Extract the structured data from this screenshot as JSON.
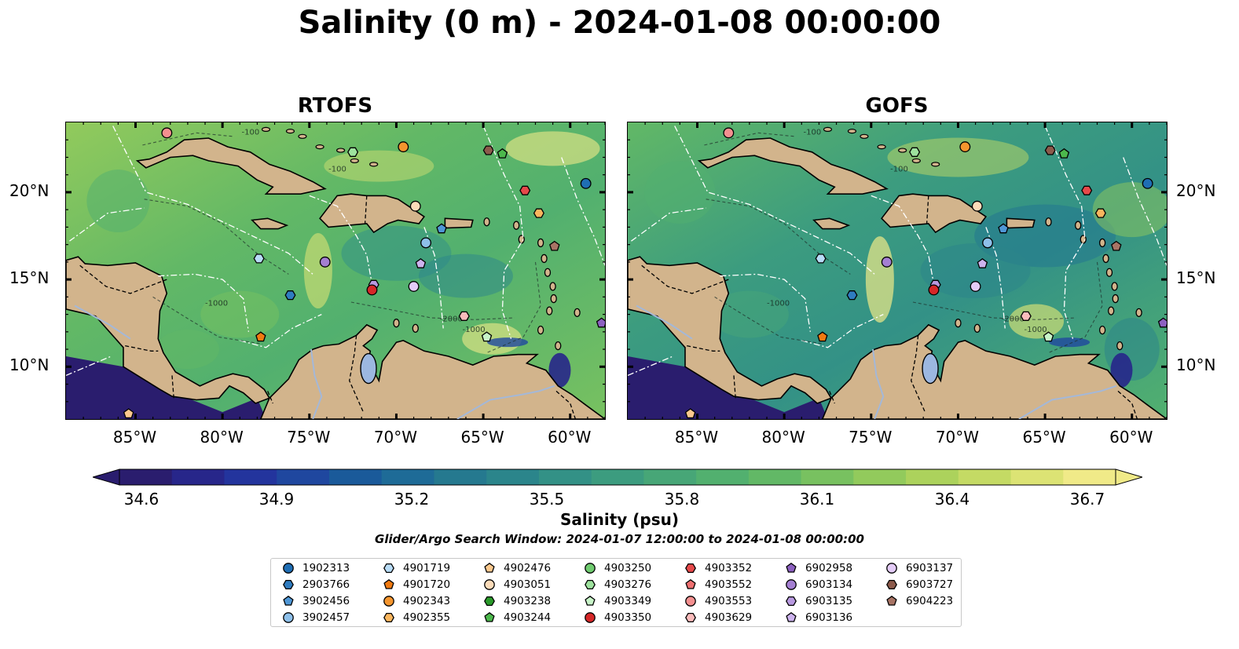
{
  "title": "Salinity (0 m) - 2024-01-08 00:00:00",
  "panels": [
    {
      "id": "rtofs",
      "title": "RTOFS"
    },
    {
      "id": "gofs",
      "title": "GOFS"
    }
  ],
  "map": {
    "lon_range": [
      -89,
      -58
    ],
    "lat_range": [
      7,
      24
    ],
    "lon_ticks": [
      "85°W",
      "80°W",
      "75°W",
      "70°W",
      "65°W",
      "60°W"
    ],
    "lat_ticks": [
      "20°N",
      "15°N",
      "10°N"
    ],
    "contour_labels": [
      "-100",
      "-1000",
      "-2000"
    ],
    "colors": {
      "land": "#d2b48c",
      "lake": "#9cb7e0",
      "deep_pacific": "#2a1d6e",
      "coastline": "#000000",
      "eez": "#ffffff"
    }
  },
  "colorbar": {
    "ticks": [
      "34.6",
      "34.9",
      "35.2",
      "35.5",
      "35.8",
      "36.1",
      "36.4",
      "36.7"
    ],
    "label": "Salinity (psu)",
    "colors": [
      "#2a1d6e",
      "#27268a",
      "#23349d",
      "#1f479f",
      "#1a5a9a",
      "#1e6b97",
      "#25798f",
      "#2b858b",
      "#339186",
      "#3c9c7f",
      "#47a677",
      "#52b06f",
      "#62b866",
      "#78c160",
      "#92ca5c",
      "#acd25c",
      "#c4da64",
      "#dce374",
      "#f0ea88"
    ]
  },
  "search_window": "Glider/Argo Search Window: 2024-01-07 12:00:00 to 2024-01-08 00:00:00",
  "legend": {
    "entries": [
      {
        "id": "1902313",
        "marker": "circle",
        "color": "#1f6eb4"
      },
      {
        "id": "2903766",
        "marker": "hexagon",
        "color": "#2f7cc0"
      },
      {
        "id": "3902456",
        "marker": "pentagon",
        "color": "#4f97d6"
      },
      {
        "id": "3902457",
        "marker": "circle",
        "color": "#8ec0ea"
      },
      {
        "id": "4901719",
        "marker": "hexagon",
        "color": "#b8dcf7"
      },
      {
        "id": "4901720",
        "marker": "pentagon",
        "color": "#f07a10"
      },
      {
        "id": "4902343",
        "marker": "circle",
        "color": "#f4952e"
      },
      {
        "id": "4902355",
        "marker": "hexagon",
        "color": "#f9b65e"
      },
      {
        "id": "4902476",
        "marker": "pentagon",
        "color": "#fcc98e"
      },
      {
        "id": "4903051",
        "marker": "circle",
        "color": "#fddcba"
      },
      {
        "id": "4903238",
        "marker": "hexagon",
        "color": "#2a9a2a"
      },
      {
        "id": "4903244",
        "marker": "pentagon",
        "color": "#4cb84c"
      },
      {
        "id": "4903250",
        "marker": "circle",
        "color": "#6fcb6f"
      },
      {
        "id": "4903276",
        "marker": "hexagon",
        "color": "#9ee29e"
      },
      {
        "id": "4903349",
        "marker": "pentagon",
        "color": "#c8f4c8"
      },
      {
        "id": "4903350",
        "marker": "circle",
        "color": "#d62728"
      },
      {
        "id": "4903352",
        "marker": "hexagon",
        "color": "#e6494a"
      },
      {
        "id": "4903552",
        "marker": "pentagon",
        "color": "#ee6f70"
      },
      {
        "id": "4903553",
        "marker": "circle",
        "color": "#f49090"
      },
      {
        "id": "4903629",
        "marker": "hexagon",
        "color": "#fbbcbc"
      },
      {
        "id": "6902958",
        "marker": "pentagon",
        "color": "#8c60c0"
      },
      {
        "id": "6903134",
        "marker": "circle",
        "color": "#a47fd2"
      },
      {
        "id": "6903135",
        "marker": "hexagon",
        "color": "#b899e0"
      },
      {
        "id": "6903136",
        "marker": "pentagon",
        "color": "#cdb3ee"
      },
      {
        "id": "6903137",
        "marker": "circle",
        "color": "#e4ccf8"
      },
      {
        "id": "6903727",
        "marker": "hexagon",
        "color": "#8c5a4b"
      },
      {
        "id": "6904223",
        "marker": "pentagon",
        "color": "#a87465"
      }
    ]
  },
  "floats": [
    {
      "id": "4903553",
      "lon": -83.2,
      "lat": 23.4
    },
    {
      "id": "4903276",
      "lon": -72.5,
      "lat": 22.3
    },
    {
      "id": "4902343",
      "lon": -69.6,
      "lat": 22.6
    },
    {
      "id": "6903727",
      "lon": -64.7,
      "lat": 22.4
    },
    {
      "id": "4903244",
      "lon": -63.9,
      "lat": 22.2
    },
    {
      "id": "1902313",
      "lon": -59.1,
      "lat": 20.5
    },
    {
      "id": "4903352",
      "lon": -62.6,
      "lat": 20.1
    },
    {
      "id": "4903051",
      "lon": -68.9,
      "lat": 19.2
    },
    {
      "id": "4902355",
      "lon": -61.8,
      "lat": 18.8
    },
    {
      "id": "3902456",
      "lon": -67.4,
      "lat": 17.9
    },
    {
      "id": "3902457",
      "lon": -68.3,
      "lat": 17.1
    },
    {
      "id": "6904223",
      "lon": -60.9,
      "lat": 16.9
    },
    {
      "id": "4901719",
      "lon": -77.9,
      "lat": 16.2
    },
    {
      "id": "6903134",
      "lon": -74.1,
      "lat": 16.0
    },
    {
      "id": "6903136",
      "lon": -68.6,
      "lat": 15.9
    },
    {
      "id": "6903135",
      "lon": -71.3,
      "lat": 14.7
    },
    {
      "id": "4903350",
      "lon": -71.4,
      "lat": 14.4
    },
    {
      "id": "6903137",
      "lon": -69.0,
      "lat": 14.6
    },
    {
      "id": "2903766",
      "lon": -76.1,
      "lat": 14.1
    },
    {
      "id": "4903629",
      "lon": -66.1,
      "lat": 12.9
    },
    {
      "id": "6902958",
      "lon": -58.2,
      "lat": 12.5
    },
    {
      "id": "4901720",
      "lon": -77.8,
      "lat": 11.7
    },
    {
      "id": "4903349",
      "lon": -64.8,
      "lat": 11.7
    },
    {
      "id": "4902476",
      "lon": -85.4,
      "lat": 7.3
    }
  ]
}
